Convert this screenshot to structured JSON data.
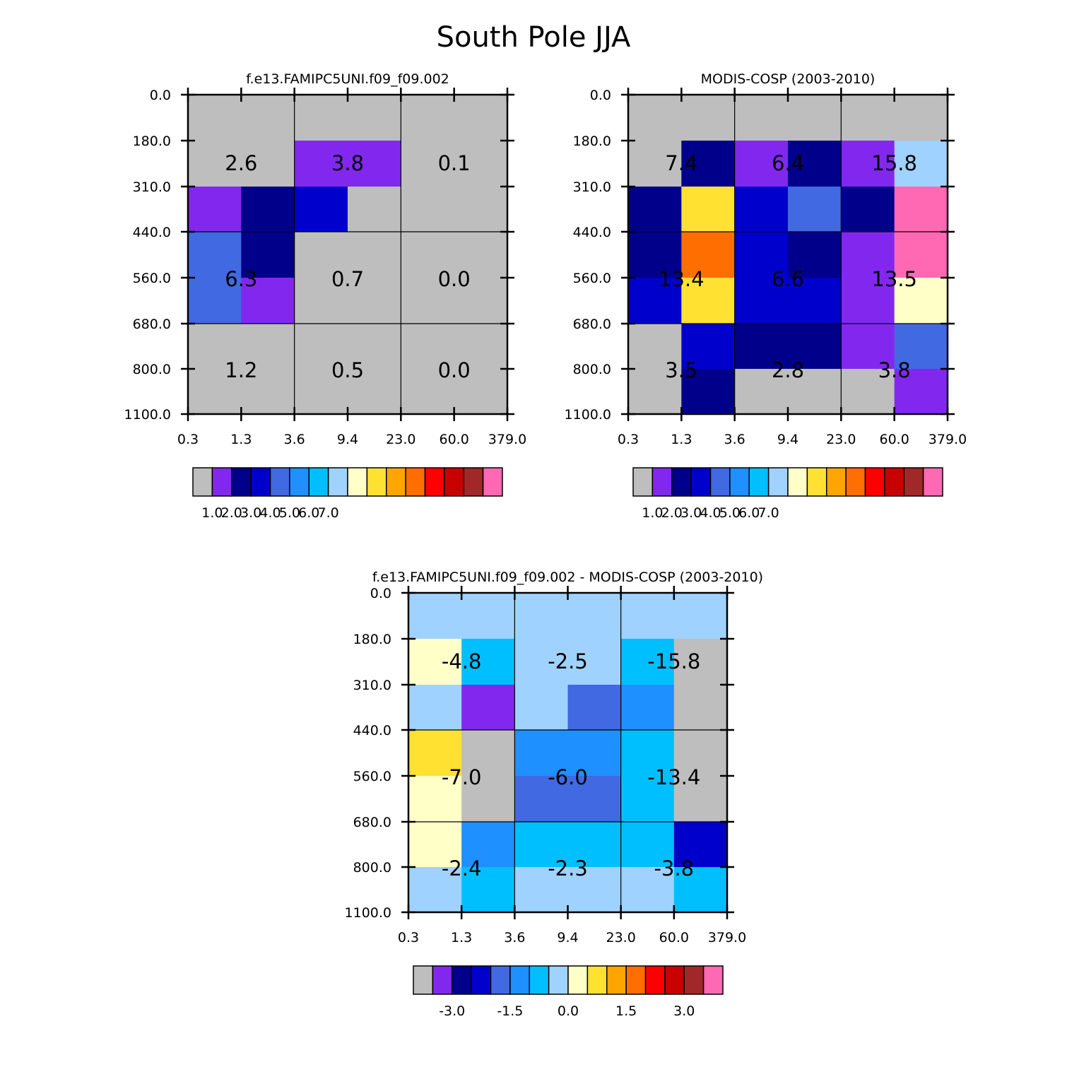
{
  "title": "South Pole JJA",
  "palette": [
    "#bebebe",
    "#8228ee",
    "#00008b",
    "#0000cd",
    "#4169e1",
    "#1e90ff",
    "#00bfff",
    "#a0d2ff",
    "#ffffc8",
    "#ffe132",
    "#ffa500",
    "#ff6e00",
    "#ff0000",
    "#c80000",
    "#a02828",
    "#ff69b4"
  ],
  "chart_data": [
    {
      "type": "heatmap",
      "title": "f.e13.FAMIPC5UNI.f09_f09.002",
      "xlabel": "",
      "ylabel": "",
      "x_ticks": [
        "0.3",
        "1.3",
        "3.6",
        "9.4",
        "23.0",
        "60.0",
        "379.0"
      ],
      "y_ticks": [
        "0.0",
        "180.0",
        "310.0",
        "440.0",
        "560.0",
        "680.0",
        "800.0",
        "1100.0"
      ],
      "cells": [
        [
          0,
          0,
          0,
          0,
          0,
          0
        ],
        [
          0,
          0,
          1,
          1,
          0,
          0
        ],
        [
          1,
          2,
          3,
          0,
          0,
          0
        ],
        [
          4,
          2,
          0,
          0,
          0,
          0
        ],
        [
          4,
          1,
          0,
          0,
          0,
          0
        ],
        [
          0,
          0,
          0,
          0,
          0,
          0
        ],
        [
          0,
          0,
          0,
          0,
          0,
          0
        ]
      ],
      "block_values": [
        [
          "2.6",
          "3.8",
          "0.1"
        ],
        [
          "6.3",
          "0.7",
          "0.0"
        ],
        [
          "1.2",
          "0.5",
          "0.0"
        ]
      ],
      "colorbar_labels": [
        "1.0",
        "2.0",
        "3.0",
        "4.0",
        "5.0",
        "6.0",
        "7.0"
      ]
    },
    {
      "type": "heatmap",
      "title": "MODIS-COSP (2003-2010)",
      "xlabel": "",
      "ylabel": "",
      "x_ticks": [
        "0.3",
        "1.3",
        "3.6",
        "9.4",
        "23.0",
        "60.0",
        "379.0"
      ],
      "y_ticks": [
        "0.0",
        "180.0",
        "310.0",
        "440.0",
        "560.0",
        "680.0",
        "800.0",
        "1100.0"
      ],
      "cells": [
        [
          0,
          0,
          0,
          0,
          0,
          0
        ],
        [
          0,
          2,
          1,
          2,
          1,
          7
        ],
        [
          2,
          9,
          3,
          4,
          2,
          15
        ],
        [
          2,
          11,
          3,
          2,
          1,
          15
        ],
        [
          3,
          9,
          3,
          3,
          1,
          8
        ],
        [
          0,
          3,
          2,
          2,
          1,
          4
        ],
        [
          0,
          2,
          0,
          0,
          0,
          1
        ]
      ],
      "block_values": [
        [
          "7.4",
          "6.4",
          "15.8"
        ],
        [
          "13.4",
          "6.6",
          "13.5"
        ],
        [
          "3.5",
          "2.8",
          "3.8"
        ]
      ],
      "colorbar_labels": [
        "1.0",
        "2.0",
        "3.0",
        "4.0",
        "5.0",
        "6.0",
        "7.0"
      ]
    },
    {
      "type": "heatmap",
      "title": "f.e13.FAMIPC5UNI.f09_f09.002 - MODIS-COSP (2003-2010)",
      "xlabel": "",
      "ylabel": "",
      "x_ticks": [
        "0.3",
        "1.3",
        "3.6",
        "9.4",
        "23.0",
        "60.0",
        "379.0"
      ],
      "y_ticks": [
        "0.0",
        "180.0",
        "310.0",
        "440.0",
        "560.0",
        "680.0",
        "800.0",
        "1100.0"
      ],
      "cells": [
        [
          7,
          7,
          7,
          7,
          7,
          7
        ],
        [
          8,
          6,
          7,
          7,
          6,
          0
        ],
        [
          7,
          1,
          7,
          4,
          5,
          0
        ],
        [
          9,
          0,
          5,
          5,
          6,
          0
        ],
        [
          8,
          0,
          4,
          4,
          6,
          0
        ],
        [
          8,
          5,
          6,
          6,
          6,
          3
        ],
        [
          7,
          6,
          7,
          7,
          7,
          6
        ]
      ],
      "block_values": [
        [
          "-4.8",
          "-2.5",
          "-15.8"
        ],
        [
          "-7.0",
          "-6.0",
          "-13.4"
        ],
        [
          "-2.4",
          "-2.3",
          "-3.8"
        ]
      ],
      "colorbar_labels": [
        "-3.0",
        "-1.5",
        "0.0",
        "1.5",
        "3.0"
      ]
    }
  ]
}
